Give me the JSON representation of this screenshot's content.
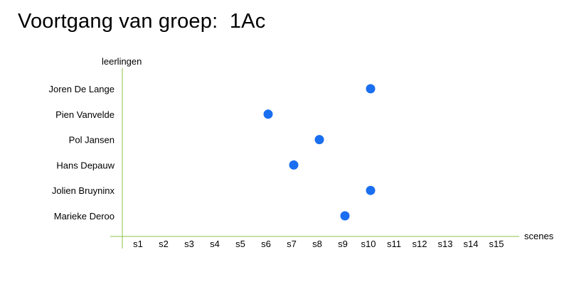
{
  "title": "Voortgang van groep:  1Ac",
  "colors": {
    "axis": "#8bc34a",
    "point": "#1a6ef0",
    "text": "#000000"
  },
  "chart_data": {
    "type": "scatter",
    "title": "Voortgang van groep:  1Ac",
    "xlabel": "scenes",
    "ylabel": "leerlingen",
    "x_categories": [
      "s1",
      "s2",
      "s3",
      "s4",
      "s5",
      "s6",
      "s7",
      "s8",
      "s9",
      "s10",
      "s11",
      "s12",
      "s13",
      "s14",
      "s15"
    ],
    "y_categories": [
      "Joren De Lange",
      "Pien Vanvelde",
      "Pol Jansen",
      "Hans Depauw",
      "Jolien Bruyninx",
      "Marieke Deroo"
    ],
    "points": [
      {
        "student": "Joren De Lange",
        "scene": "s10"
      },
      {
        "student": "Pien Vanvelde",
        "scene": "s6"
      },
      {
        "student": "Pol Jansen",
        "scene": "s8"
      },
      {
        "student": "Hans Depauw",
        "scene": "s7"
      },
      {
        "student": "Jolien Bruyninx",
        "scene": "s10"
      },
      {
        "student": "Marieke Deroo",
        "scene": "s9"
      }
    ],
    "grid": false,
    "legend": "none"
  }
}
